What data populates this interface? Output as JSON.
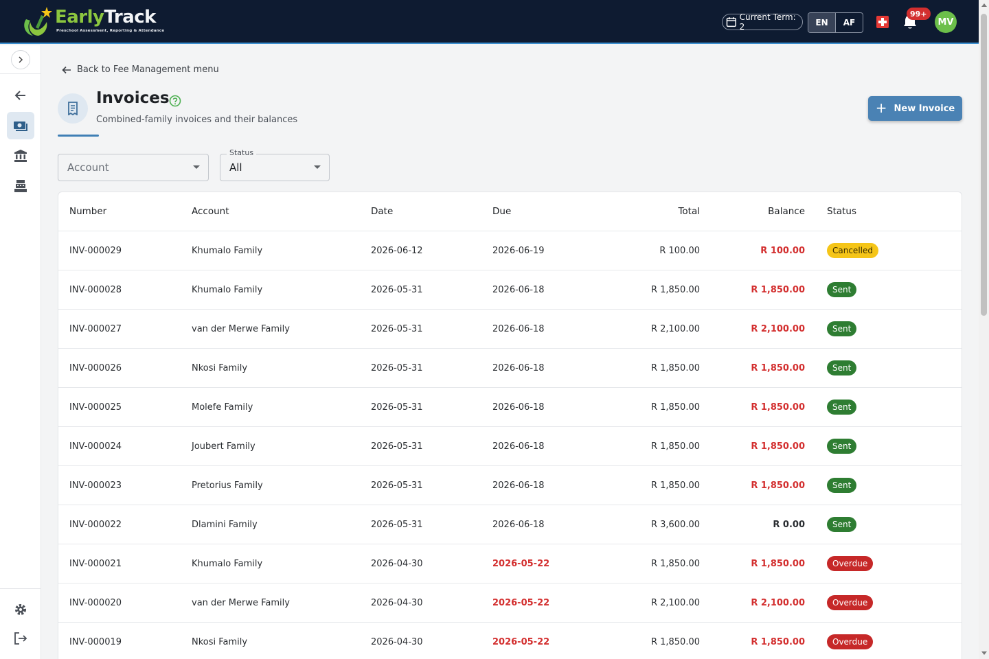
{
  "app": {
    "logo_title_a": "Early",
    "logo_title_b": "Track",
    "logo_subtitle": "Preschool Assessment, Reporting & Attendance"
  },
  "header": {
    "term_label": "Current Term: 2",
    "lang_en": "EN",
    "lang_af": "AF",
    "notification_count": "99+",
    "avatar_initials": "MV"
  },
  "sidebar": {
    "icons": [
      "chevron-right-icon",
      "arrow-left-icon",
      "invoice-cash-icon",
      "bank-icon",
      "cash-register-icon",
      "gear-icon",
      "logout-icon"
    ]
  },
  "main": {
    "back_label": "Back to Fee Management menu",
    "title": "Invoices",
    "subtitle": "Combined-family invoices and their balances",
    "new_button": "New Invoice"
  },
  "filters": {
    "account_placeholder": "Account",
    "status_label": "Status",
    "status_value": "All"
  },
  "table": {
    "headers": {
      "number": "Number",
      "account": "Account",
      "date": "Date",
      "due": "Due",
      "total": "Total",
      "balance": "Balance",
      "status": "Status"
    },
    "rows": [
      {
        "number": "INV-000029",
        "account": "Khumalo Family",
        "date": "2026-06-12",
        "due": "2026-06-19",
        "due_overdue": false,
        "total": "R 100.00",
        "balance": "R 100.00",
        "balance_red": true,
        "status": "Cancelled",
        "status_kind": "cancelled"
      },
      {
        "number": "INV-000028",
        "account": "Khumalo Family",
        "date": "2026-05-31",
        "due": "2026-06-18",
        "due_overdue": false,
        "total": "R 1,850.00",
        "balance": "R 1,850.00",
        "balance_red": true,
        "status": "Sent",
        "status_kind": "sent"
      },
      {
        "number": "INV-000027",
        "account": "van der Merwe Family",
        "date": "2026-05-31",
        "due": "2026-06-18",
        "due_overdue": false,
        "total": "R 2,100.00",
        "balance": "R 2,100.00",
        "balance_red": true,
        "status": "Sent",
        "status_kind": "sent"
      },
      {
        "number": "INV-000026",
        "account": "Nkosi Family",
        "date": "2026-05-31",
        "due": "2026-06-18",
        "due_overdue": false,
        "total": "R 1,850.00",
        "balance": "R 1,850.00",
        "balance_red": true,
        "status": "Sent",
        "status_kind": "sent"
      },
      {
        "number": "INV-000025",
        "account": "Molefe Family",
        "date": "2026-05-31",
        "due": "2026-06-18",
        "due_overdue": false,
        "total": "R 1,850.00",
        "balance": "R 1,850.00",
        "balance_red": true,
        "status": "Sent",
        "status_kind": "sent"
      },
      {
        "number": "INV-000024",
        "account": "Joubert Family",
        "date": "2026-05-31",
        "due": "2026-06-18",
        "due_overdue": false,
        "total": "R 1,850.00",
        "balance": "R 1,850.00",
        "balance_red": true,
        "status": "Sent",
        "status_kind": "sent"
      },
      {
        "number": "INV-000023",
        "account": "Pretorius Family",
        "date": "2026-05-31",
        "due": "2026-06-18",
        "due_overdue": false,
        "total": "R 1,850.00",
        "balance": "R 1,850.00",
        "balance_red": true,
        "status": "Sent",
        "status_kind": "sent"
      },
      {
        "number": "INV-000022",
        "account": "Dlamini Family",
        "date": "2026-05-31",
        "due": "2026-06-18",
        "due_overdue": false,
        "total": "R 3,600.00",
        "balance": "R 0.00",
        "balance_red": false,
        "status": "Sent",
        "status_kind": "sent"
      },
      {
        "number": "INV-000021",
        "account": "Khumalo Family",
        "date": "2026-04-30",
        "due": "2026-05-22",
        "due_overdue": true,
        "total": "R 1,850.00",
        "balance": "R 1,850.00",
        "balance_red": true,
        "status": "Overdue",
        "status_kind": "overdue"
      },
      {
        "number": "INV-000020",
        "account": "van der Merwe Family",
        "date": "2026-04-30",
        "due": "2026-05-22",
        "due_overdue": true,
        "total": "R 2,100.00",
        "balance": "R 2,100.00",
        "balance_red": true,
        "status": "Overdue",
        "status_kind": "overdue"
      },
      {
        "number": "INV-000019",
        "account": "Nkosi Family",
        "date": "2026-04-30",
        "due": "2026-05-22",
        "due_overdue": true,
        "total": "R 1,850.00",
        "balance": "R 1,850.00",
        "balance_red": true,
        "status": "Overdue",
        "status_kind": "overdue"
      }
    ]
  },
  "colors": {
    "topbar": "#0e1b31",
    "accent": "#4a82b4",
    "danger": "#d32f2f",
    "success": "#2e7d32",
    "warning": "#f5c518"
  }
}
